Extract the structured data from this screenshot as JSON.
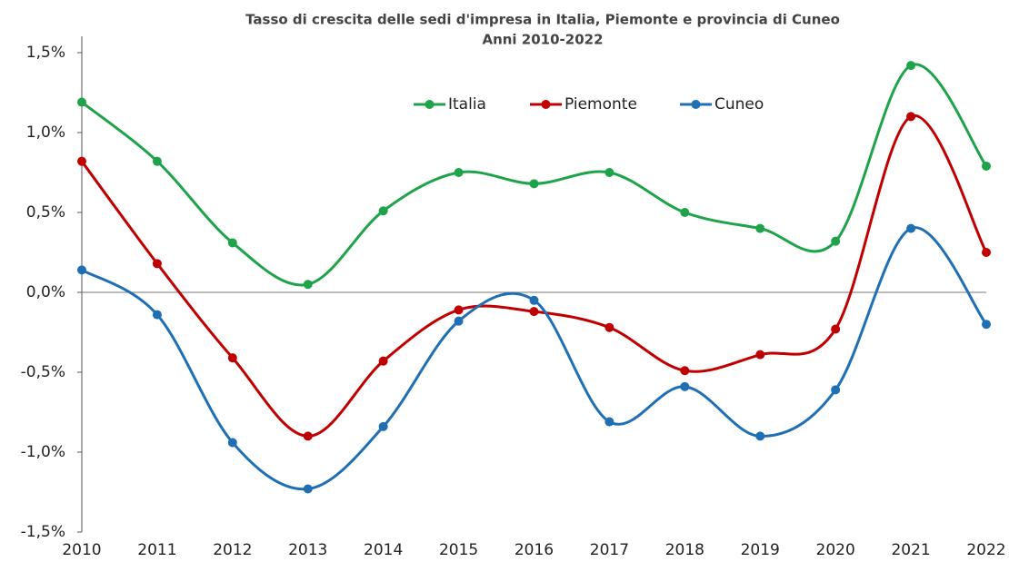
{
  "chart_data": {
    "type": "line",
    "title": "Tasso di crescita delle sedi d'impresa in Italia, Piemonte e provincia di Cuneo",
    "subtitle": "Anni 2010-2022",
    "categories": [
      "2010",
      "2011",
      "2012",
      "2013",
      "2014",
      "2015",
      "2016",
      "2017",
      "2018",
      "2019",
      "2020",
      "2021",
      "2022"
    ],
    "series": [
      {
        "name": "Italia",
        "color": "#1fa34a",
        "values": [
          1.19,
          0.82,
          0.31,
          0.05,
          0.51,
          0.75,
          0.68,
          0.75,
          0.5,
          0.4,
          0.32,
          1.42,
          0.79
        ]
      },
      {
        "name": "Piemonte",
        "color": "#c00000",
        "values": [
          0.82,
          0.18,
          -0.41,
          -0.9,
          -0.43,
          -0.11,
          -0.12,
          -0.22,
          -0.49,
          -0.39,
          -0.23,
          1.1,
          0.25
        ]
      },
      {
        "name": "Cuneo",
        "color": "#1f6fb5",
        "values": [
          0.14,
          -0.14,
          -0.94,
          -1.23,
          -0.84,
          -0.18,
          -0.05,
          -0.81,
          -0.59,
          -0.9,
          -0.61,
          0.4,
          -0.2
        ]
      }
    ],
    "ylim": [
      -1.5,
      1.5
    ],
    "yticks": [
      {
        "value": -1.5,
        "label": "-1,5%"
      },
      {
        "value": -1.0,
        "label": "-1,0%"
      },
      {
        "value": -0.5,
        "label": "-0,5%"
      },
      {
        "value": 0,
        "label": "0,0%"
      },
      {
        "value": 0.5,
        "label": "0,5%"
      },
      {
        "value": 1.0,
        "label": "1,0%"
      },
      {
        "value": 1.5,
        "label": "1,5%"
      }
    ],
    "legend": "top",
    "smooth": true
  }
}
